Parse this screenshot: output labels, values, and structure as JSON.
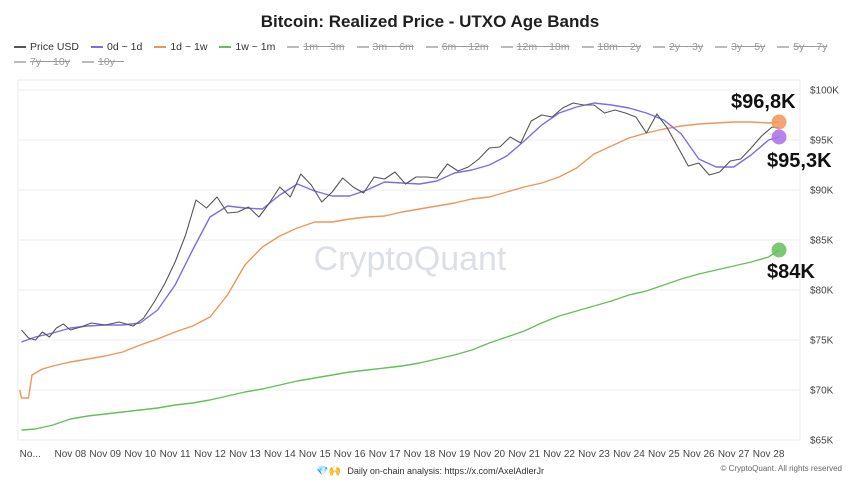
{
  "chart_data": {
    "type": "line",
    "title": "Bitcoin: Realized Price - UTXO Age Bands",
    "ylim": [
      65000,
      101000
    ],
    "y_ticks": [
      {
        "value": 100000,
        "label": "$100K"
      },
      {
        "value": 95000,
        "label": "$95K"
      },
      {
        "value": 90000,
        "label": "$90K"
      },
      {
        "value": 85000,
        "label": "$85K"
      },
      {
        "value": 80000,
        "label": "$80K"
      },
      {
        "value": 75000,
        "label": "$75K"
      },
      {
        "value": 70000,
        "label": "$70K"
      },
      {
        "value": 65000,
        "label": "$65K"
      }
    ],
    "xlim": [
      6.5,
      28.9
    ],
    "x_ticks": [
      {
        "value": 6.85,
        "label": "No..."
      },
      {
        "value": 8,
        "label": "Nov 08"
      },
      {
        "value": 9,
        "label": "Nov 09"
      },
      {
        "value": 10,
        "label": "Nov 10"
      },
      {
        "value": 11,
        "label": "Nov 11"
      },
      {
        "value": 12,
        "label": "Nov 12"
      },
      {
        "value": 13,
        "label": "Nov 13"
      },
      {
        "value": 14,
        "label": "Nov 14"
      },
      {
        "value": 15,
        "label": "Nov 15"
      },
      {
        "value": 16,
        "label": "Nov 16"
      },
      {
        "value": 17,
        "label": "Nov 17"
      },
      {
        "value": 18,
        "label": "Nov 18"
      },
      {
        "value": 19,
        "label": "Nov 19"
      },
      {
        "value": 20,
        "label": "Nov 20"
      },
      {
        "value": 21,
        "label": "Nov 21"
      },
      {
        "value": 22,
        "label": "Nov 22"
      },
      {
        "value": 23,
        "label": "Nov 23"
      },
      {
        "value": 24,
        "label": "Nov 24"
      },
      {
        "value": 25,
        "label": "Nov 25"
      },
      {
        "value": 26,
        "label": "Nov 26"
      },
      {
        "value": 27,
        "label": "Nov 27"
      },
      {
        "value": 28,
        "label": "Nov 28"
      }
    ],
    "legend": [
      {
        "name": "Price USD",
        "color": "#555555",
        "visible": true
      },
      {
        "name": "0d ~ 1d",
        "color": "#7b6ee8",
        "visible": true
      },
      {
        "name": "1d ~ 1w",
        "color": "#f0955a",
        "visible": true
      },
      {
        "name": "1w ~ 1m",
        "color": "#66c05a",
        "visible": true
      },
      {
        "name": "1m ~ 3m",
        "color": "#bbbbbb",
        "visible": false
      },
      {
        "name": "3m ~ 6m",
        "color": "#bbbbbb",
        "visible": false
      },
      {
        "name": "6m ~ 12m",
        "color": "#bbbbbb",
        "visible": false
      },
      {
        "name": "12m ~ 18m",
        "color": "#bbbbbb",
        "visible": false
      },
      {
        "name": "18m ~ 2y",
        "color": "#bbbbbb",
        "visible": false
      },
      {
        "name": "2y ~ 3y",
        "color": "#bbbbbb",
        "visible": false
      },
      {
        "name": "3y ~ 5y",
        "color": "#bbbbbb",
        "visible": false
      },
      {
        "name": "5y ~ 7y",
        "color": "#bbbbbb",
        "visible": false
      },
      {
        "name": "7y ~ 10y",
        "color": "#bbbbbb",
        "visible": false
      },
      {
        "name": "10y ~",
        "color": "#bbbbbb",
        "visible": false
      }
    ],
    "series": [
      {
        "name": "Price USD",
        "color": "#555555",
        "x": [
          6.6,
          6.8,
          7.0,
          7.2,
          7.4,
          7.6,
          7.8,
          8.0,
          8.3,
          8.6,
          9.0,
          9.4,
          9.8,
          10.1,
          10.4,
          10.7,
          11.0,
          11.3,
          11.6,
          11.9,
          12.2,
          12.5,
          12.8,
          13.1,
          13.4,
          13.7,
          14.0,
          14.3,
          14.6,
          14.9,
          15.2,
          15.5,
          15.8,
          16.1,
          16.4,
          16.7,
          17.0,
          17.3,
          17.6,
          17.9,
          18.2,
          18.5,
          18.8,
          19.1,
          19.4,
          19.7,
          20.0,
          20.3,
          20.6,
          20.9,
          21.2,
          21.5,
          21.8,
          22.1,
          22.4,
          22.7,
          23.0,
          23.3,
          23.6,
          23.9,
          24.2,
          24.5,
          24.8,
          25.1,
          25.4,
          25.7,
          26.0,
          26.3,
          26.6,
          26.9,
          27.2,
          27.5,
          27.8,
          28.1,
          28.3
        ],
        "values": [
          76000,
          75200,
          75000,
          75800,
          75300,
          76200,
          76600,
          76000,
          76300,
          76700,
          76500,
          76800,
          76400,
          77200,
          78800,
          80600,
          82800,
          85500,
          89000,
          88200,
          89300,
          87700,
          87800,
          88300,
          87300,
          88700,
          90300,
          89300,
          91600,
          90500,
          88800,
          89800,
          91200,
          90300,
          89700,
          91300,
          91100,
          91800,
          90600,
          91300,
          91300,
          91200,
          92600,
          91900,
          92300,
          93100,
          94200,
          94300,
          95300,
          94700,
          96900,
          97500,
          97300,
          98200,
          98700,
          98500,
          98500,
          97700,
          98000,
          97700,
          97300,
          95700,
          97600,
          96200,
          94300,
          92400,
          92700,
          91500,
          91800,
          92900,
          93100,
          94200,
          95400,
          96300,
          96200
        ]
      },
      {
        "name": "0d ~ 1d",
        "color": "#7b6ee8",
        "x": [
          6.6,
          7.0,
          7.5,
          8.0,
          8.5,
          9.0,
          9.5,
          10.0,
          10.5,
          11.0,
          11.5,
          12.0,
          12.5,
          13.0,
          13.5,
          14.0,
          14.5,
          15.0,
          15.5,
          16.0,
          16.5,
          17.0,
          17.5,
          18.0,
          18.5,
          19.0,
          19.5,
          20.0,
          20.5,
          21.0,
          21.5,
          22.0,
          22.5,
          23.0,
          23.5,
          24.0,
          24.5,
          25.0,
          25.5,
          26.0,
          26.5,
          27.0,
          27.5,
          28.0,
          28.3
        ],
        "values": [
          74800,
          75300,
          75700,
          76200,
          76400,
          76500,
          76500,
          76700,
          78000,
          80500,
          84000,
          87300,
          88400,
          88200,
          88100,
          89500,
          90600,
          89900,
          89400,
          89400,
          90000,
          90800,
          90700,
          90600,
          90900,
          91700,
          92000,
          92500,
          93400,
          94900,
          96500,
          97700,
          98300,
          98700,
          98500,
          98200,
          97700,
          97000,
          95600,
          93100,
          92300,
          92300,
          93500,
          95000,
          95300
        ]
      },
      {
        "name": "1d ~ 1w",
        "color": "#f0955a",
        "x": [
          6.55,
          6.6,
          6.8,
          6.9,
          7.2,
          7.5,
          8.0,
          8.5,
          9.0,
          9.5,
          10.0,
          10.5,
          11.0,
          11.5,
          12.0,
          12.5,
          13.0,
          13.5,
          14.0,
          14.5,
          15.0,
          15.5,
          16.0,
          16.5,
          17.0,
          17.5,
          18.0,
          18.5,
          19.0,
          19.5,
          20.0,
          20.5,
          21.0,
          21.5,
          22.0,
          22.5,
          23.0,
          23.5,
          24.0,
          24.5,
          25.0,
          25.5,
          26.0,
          26.5,
          27.0,
          27.5,
          28.0,
          28.3
        ],
        "values": [
          70000,
          69200,
          69200,
          71500,
          72100,
          72400,
          72800,
          73100,
          73400,
          73800,
          74500,
          75100,
          75800,
          76400,
          77300,
          79500,
          82500,
          84300,
          85400,
          86200,
          86800,
          86800,
          87100,
          87300,
          87400,
          87800,
          88100,
          88400,
          88700,
          89100,
          89300,
          89800,
          90300,
          90700,
          91300,
          92200,
          93600,
          94400,
          95200,
          95700,
          96100,
          96400,
          96600,
          96700,
          96800,
          96800,
          96700,
          96800
        ]
      },
      {
        "name": "1w ~ 1m",
        "color": "#66c05a",
        "x": [
          6.6,
          7.0,
          7.5,
          8.0,
          8.5,
          9.0,
          9.5,
          10.0,
          10.5,
          11.0,
          11.5,
          12.0,
          12.5,
          13.0,
          13.5,
          14.0,
          14.5,
          15.0,
          15.5,
          16.0,
          16.5,
          17.0,
          17.5,
          18.0,
          18.5,
          19.0,
          19.5,
          20.0,
          20.5,
          21.0,
          21.5,
          22.0,
          22.5,
          23.0,
          23.5,
          24.0,
          24.5,
          25.0,
          25.5,
          26.0,
          26.5,
          27.0,
          27.5,
          28.0,
          28.3
        ],
        "values": [
          66000,
          66100,
          66500,
          67100,
          67400,
          67600,
          67800,
          68000,
          68200,
          68500,
          68700,
          69000,
          69400,
          69800,
          70100,
          70500,
          70900,
          71200,
          71500,
          71800,
          72000,
          72200,
          72400,
          72700,
          73100,
          73500,
          74000,
          74700,
          75300,
          75900,
          76700,
          77400,
          77900,
          78400,
          78900,
          79500,
          79900,
          80500,
          81100,
          81600,
          82000,
          82400,
          82800,
          83300,
          84000
        ]
      }
    ],
    "annotations": [
      {
        "label": "$96,8K",
        "value": 96800,
        "series": "1d ~ 1w",
        "color": "#f0955a"
      },
      {
        "label": "$95,3K",
        "value": 95300,
        "series": "0d ~ 1d",
        "color": "#a86ee8"
      },
      {
        "label": "$84K",
        "value": 84000,
        "series": "1w ~ 1m",
        "color": "#66c05a"
      }
    ]
  },
  "watermark": "CryptoQuant",
  "footer": {
    "icons": "💎🙌",
    "text": "Daily on-chain analysis: https://x.com/AxelAdlerJr",
    "copyright": "© CryptoQuant. All rights reserved"
  }
}
